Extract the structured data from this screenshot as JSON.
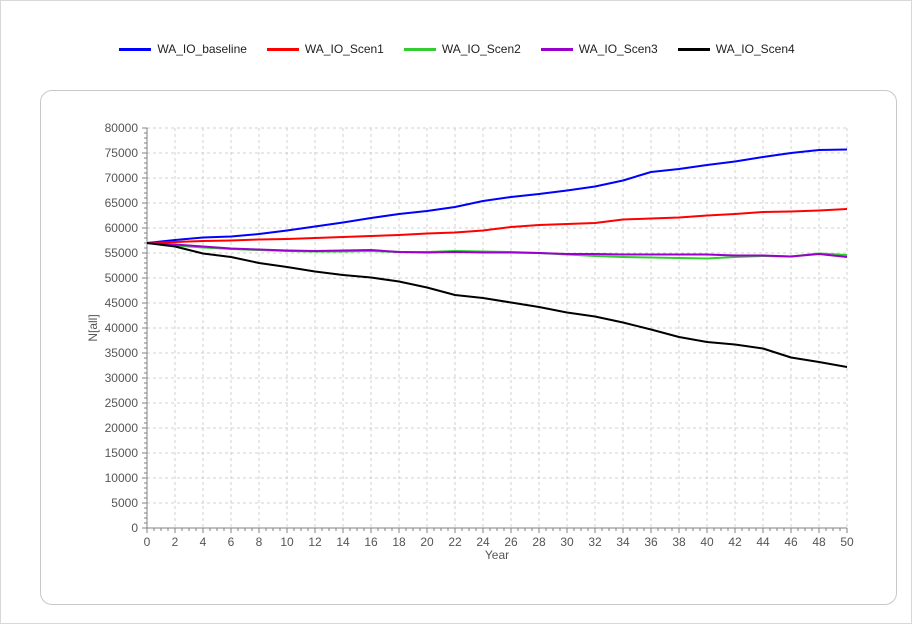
{
  "chart_data": {
    "type": "line",
    "title": "",
    "xlabel": "Year",
    "ylabel": "N[all]",
    "xlim": [
      0,
      50
    ],
    "ylim": [
      0,
      80000
    ],
    "x_ticks": [
      0,
      2,
      4,
      6,
      8,
      10,
      12,
      14,
      16,
      18,
      20,
      22,
      24,
      26,
      28,
      30,
      32,
      34,
      36,
      38,
      40,
      42,
      44,
      46,
      48,
      50
    ],
    "y_ticks": [
      0,
      5000,
      10000,
      15000,
      20000,
      25000,
      30000,
      35000,
      40000,
      45000,
      50000,
      55000,
      60000,
      65000,
      70000,
      75000,
      80000
    ],
    "grid": true,
    "legend_position": "top",
    "series": [
      {
        "name": "WA_IO_baseline",
        "color": "#0000ff",
        "x": [
          0,
          2,
          4,
          6,
          8,
          10,
          12,
          14,
          16,
          18,
          20,
          22,
          24,
          26,
          28,
          30,
          32,
          34,
          36,
          38,
          40,
          42,
          44,
          46,
          48,
          50
        ],
        "values": [
          57000,
          57600,
          58100,
          58300,
          58800,
          59500,
          60300,
          61100,
          62000,
          62800,
          63400,
          64200,
          65400,
          66200,
          66800,
          67500,
          68300,
          69500,
          71200,
          71800,
          72600,
          73300,
          74200,
          75000,
          75600,
          75700
        ]
      },
      {
        "name": "WA_IO_Scen1",
        "color": "#ff0000",
        "x": [
          0,
          2,
          4,
          6,
          8,
          10,
          12,
          14,
          16,
          18,
          20,
          22,
          24,
          26,
          28,
          30,
          32,
          34,
          36,
          38,
          40,
          42,
          44,
          46,
          48,
          50
        ],
        "values": [
          57000,
          57200,
          57400,
          57500,
          57700,
          57800,
          58000,
          58200,
          58400,
          58600,
          58900,
          59100,
          59500,
          60200,
          60600,
          60800,
          61000,
          61700,
          61900,
          62100,
          62500,
          62800,
          63200,
          63300,
          63500,
          63800
        ]
      },
      {
        "name": "WA_IO_Scen2",
        "color": "#33cc33",
        "x": [
          0,
          2,
          4,
          6,
          8,
          10,
          12,
          14,
          16,
          18,
          20,
          22,
          24,
          26,
          28,
          30,
          32,
          34,
          36,
          38,
          40,
          42,
          44,
          46,
          48,
          50
        ],
        "values": [
          57000,
          56500,
          56100,
          55800,
          55600,
          55400,
          55300,
          55300,
          55400,
          55200,
          55200,
          55400,
          55300,
          55200,
          55000,
          54700,
          54400,
          54200,
          54100,
          54000,
          53900,
          54200,
          54400,
          54300,
          54900,
          54600
        ]
      },
      {
        "name": "WA_IO_Scen3",
        "color": "#9900cc",
        "x": [
          0,
          2,
          4,
          6,
          8,
          10,
          12,
          14,
          16,
          18,
          20,
          22,
          24,
          26,
          28,
          30,
          32,
          34,
          36,
          38,
          40,
          42,
          44,
          46,
          48,
          50
        ],
        "values": [
          57000,
          56700,
          56300,
          55900,
          55700,
          55500,
          55400,
          55500,
          55600,
          55200,
          55100,
          55200,
          55100,
          55100,
          55000,
          54800,
          54800,
          54700,
          54700,
          54700,
          54700,
          54500,
          54500,
          54300,
          54800,
          54200
        ]
      },
      {
        "name": "WA_IO_Scen4",
        "color": "#000000",
        "x": [
          0,
          2,
          4,
          6,
          8,
          10,
          12,
          14,
          16,
          18,
          20,
          22,
          24,
          26,
          28,
          30,
          32,
          34,
          36,
          38,
          40,
          42,
          44,
          46,
          48,
          50
        ],
        "values": [
          57000,
          56300,
          54900,
          54200,
          53000,
          52200,
          51300,
          50600,
          50100,
          49300,
          48100,
          46600,
          46000,
          45100,
          44200,
          43100,
          42300,
          41100,
          39700,
          38200,
          37200,
          36700,
          35900,
          34100,
          33200,
          32200
        ]
      }
    ]
  }
}
